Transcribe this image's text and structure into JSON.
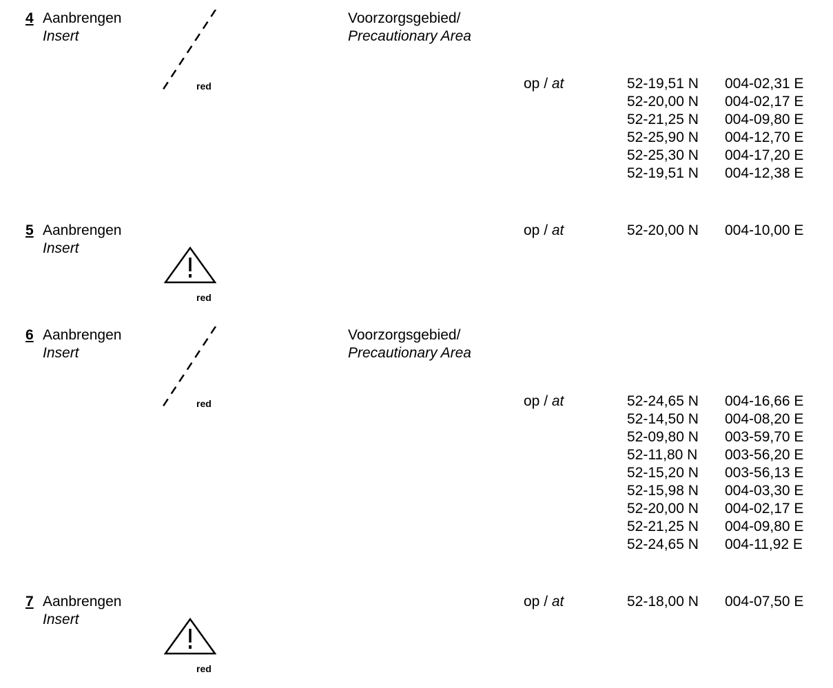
{
  "entries": [
    {
      "number": "4",
      "action": "Aanbrengen",
      "action_en": "Insert",
      "symbol": "dashed-line-icon",
      "color": "red",
      "description": "Voorzorgsgebied/",
      "description_en": "Precautionary Area",
      "position_label": "op / ",
      "position_label_en": "at",
      "coordinates": [
        {
          "lat": "52-19,51 N",
          "lon": "004-02,31 E"
        },
        {
          "lat": "52-20,00 N",
          "lon": "004-02,17 E"
        },
        {
          "lat": "52-21,25 N",
          "lon": "004-09,80 E"
        },
        {
          "lat": "52-25,90 N",
          "lon": "004-12,70 E"
        },
        {
          "lat": "52-25,30 N",
          "lon": "004-17,20 E"
        },
        {
          "lat": "52-19,51 N",
          "lon": "004-12,38 E"
        }
      ]
    },
    {
      "number": "5",
      "action": "Aanbrengen",
      "action_en": "Insert",
      "symbol": "warning-triangle-icon",
      "color": "red",
      "description": "",
      "description_en": "",
      "position_label": "op / ",
      "position_label_en": "at",
      "coordinates": [
        {
          "lat": "52-20,00 N",
          "lon": "004-10,00 E"
        }
      ]
    },
    {
      "number": "6",
      "action": "Aanbrengen",
      "action_en": "Insert",
      "symbol": "dashed-line-icon",
      "color": "red",
      "description": "Voorzorgsgebied/",
      "description_en": "Precautionary Area",
      "position_label": "op / ",
      "position_label_en": "at",
      "coordinates": [
        {
          "lat": "52-24,65 N",
          "lon": "004-16,66 E"
        },
        {
          "lat": "52-14,50 N",
          "lon": "004-08,20 E"
        },
        {
          "lat": "52-09,80 N",
          "lon": "003-59,70 E"
        },
        {
          "lat": "52-11,80 N",
          "lon": "003-56,20 E"
        },
        {
          "lat": "52-15,20 N",
          "lon": "003-56,13 E"
        },
        {
          "lat": "52-15,98 N",
          "lon": "004-03,30 E"
        },
        {
          "lat": "52-20,00 N",
          "lon": "004-02,17 E"
        },
        {
          "lat": "52-21,25 N",
          "lon": "004-09,80 E"
        },
        {
          "lat": "52-24,65 N",
          "lon": "004-11,92 E"
        }
      ]
    },
    {
      "number": "7",
      "action": "Aanbrengen",
      "action_en": "Insert",
      "symbol": "warning-triangle-icon",
      "color": "red",
      "description": "",
      "description_en": "",
      "position_label": "op / ",
      "position_label_en": "at",
      "coordinates": [
        {
          "lat": "52-18,00 N",
          "lon": "004-07,50 E"
        }
      ]
    }
  ]
}
